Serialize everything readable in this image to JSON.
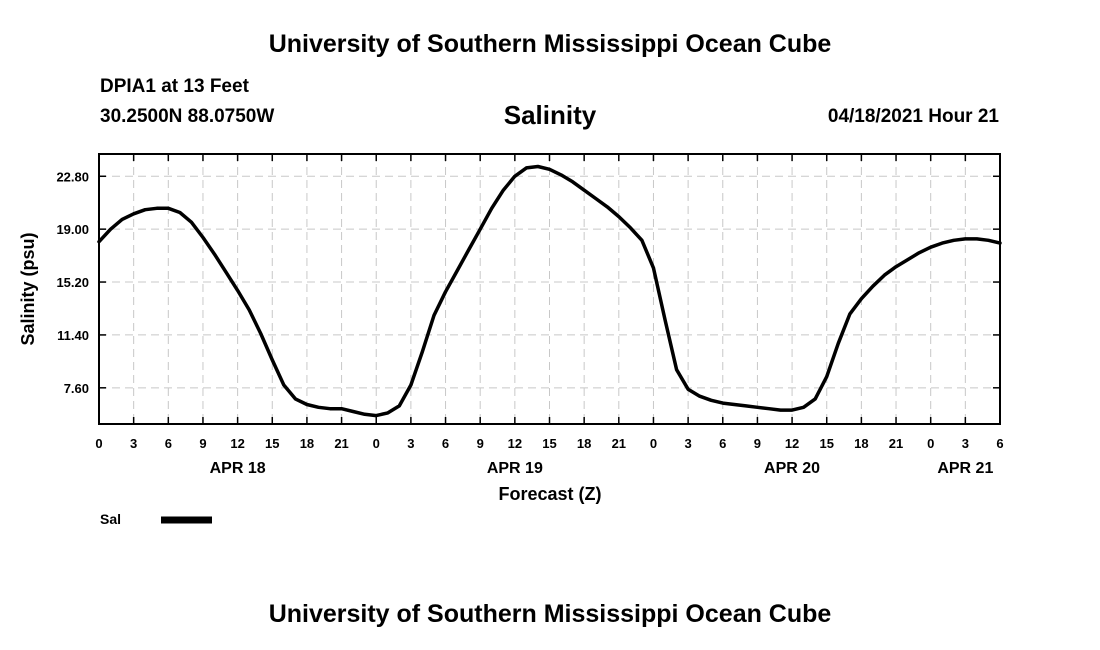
{
  "header": {
    "title": "University of Southern Mississippi Ocean Cube",
    "station": "DPIA1 at 13 Feet",
    "coordinates": "30.2500N  88.0750W",
    "timestamp": "04/18/2021 Hour 21"
  },
  "footer": {
    "title": "University of Southern Mississippi Ocean Cube"
  },
  "chart_data": {
    "type": "line",
    "title": "Salinity",
    "xlabel": "Forecast (Z)",
    "ylabel": "Salinity (psu)",
    "xlim": [
      0,
      78
    ],
    "ylim": [
      5.0,
      24.4
    ],
    "yticks": [
      7.6,
      11.4,
      15.2,
      19.0,
      22.8
    ],
    "ytick_labels": [
      "7.60",
      "11.40",
      "15.20",
      "19.00",
      "22.80"
    ],
    "xtick_labels": [
      "0",
      "3",
      "6",
      "9",
      "12",
      "15",
      "18",
      "21",
      "0",
      "3",
      "6",
      "9",
      "12",
      "15",
      "18",
      "21",
      "0",
      "3",
      "6",
      "9",
      "12",
      "15",
      "18",
      "21",
      "0",
      "3",
      "6"
    ],
    "day_labels": [
      {
        "label": "APR 18",
        "hour": 12
      },
      {
        "label": "APR 19",
        "hour": 36
      },
      {
        "label": "APR 20",
        "hour": 60
      },
      {
        "label": "APR 21",
        "hour": 75
      }
    ],
    "grid": true,
    "legend": {
      "position": "bottom-left",
      "entries": [
        "Sal"
      ]
    },
    "series": [
      {
        "name": "Sal",
        "color": "#000000",
        "x": [
          0,
          1,
          2,
          3,
          4,
          5,
          6,
          7,
          8,
          9,
          10,
          11,
          12,
          13,
          14,
          15,
          16,
          17,
          18,
          19,
          20,
          21,
          22,
          23,
          24,
          25,
          26,
          27,
          28,
          29,
          30,
          31,
          32,
          33,
          34,
          35,
          36,
          37,
          38,
          39,
          40,
          41,
          42,
          43,
          44,
          45,
          46,
          47,
          48,
          49,
          50,
          51,
          52,
          53,
          54,
          55,
          56,
          57,
          58,
          59,
          60,
          61,
          62,
          63,
          64,
          65,
          66,
          67,
          68,
          69,
          70,
          71,
          72,
          73,
          74,
          75,
          76,
          77,
          78
        ],
        "values": [
          18.1,
          19.0,
          19.7,
          20.1,
          20.4,
          20.5,
          20.5,
          20.2,
          19.5,
          18.4,
          17.2,
          15.9,
          14.6,
          13.2,
          11.5,
          9.6,
          7.8,
          6.8,
          6.4,
          6.2,
          6.1,
          6.1,
          5.9,
          5.7,
          5.6,
          5.8,
          6.3,
          7.8,
          10.2,
          12.8,
          14.5,
          16.0,
          17.5,
          19.0,
          20.5,
          21.8,
          22.8,
          23.4,
          23.5,
          23.3,
          22.9,
          22.4,
          21.8,
          21.2,
          20.6,
          19.9,
          19.1,
          18.2,
          16.2,
          12.5,
          8.9,
          7.5,
          7.0,
          6.7,
          6.5,
          6.4,
          6.3,
          6.2,
          6.1,
          6.0,
          6.0,
          6.2,
          6.8,
          8.4,
          10.8,
          12.9,
          14.0,
          14.9,
          15.7,
          16.3,
          16.8,
          17.3,
          17.7,
          18.0,
          18.2,
          18.3,
          18.3,
          18.2,
          18.0
        ]
      }
    ]
  }
}
